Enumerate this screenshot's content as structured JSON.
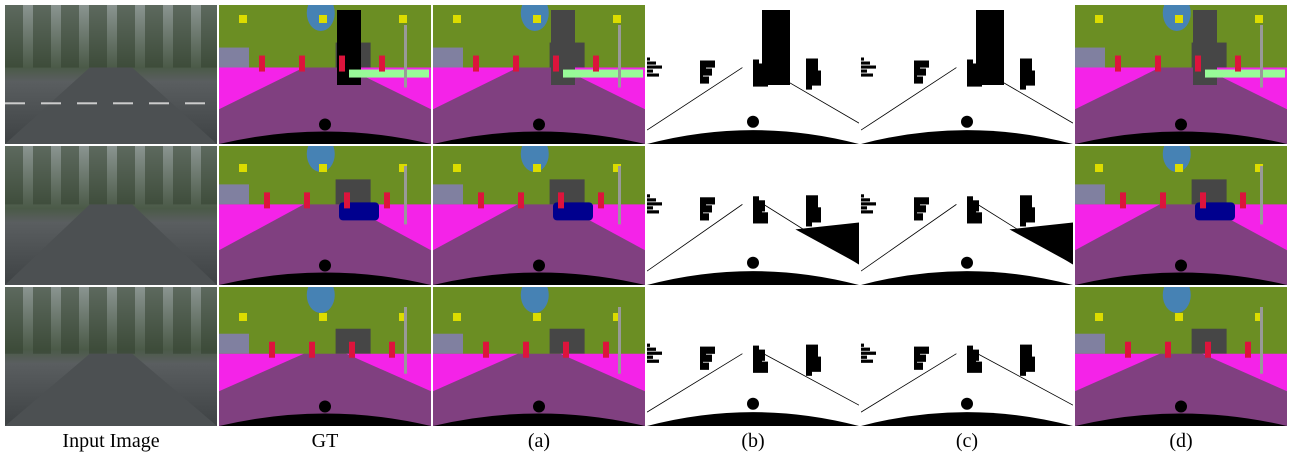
{
  "captions": [
    "Input Image",
    "GT",
    "(a)",
    "(b)",
    "(c)",
    "(d)"
  ]
}
